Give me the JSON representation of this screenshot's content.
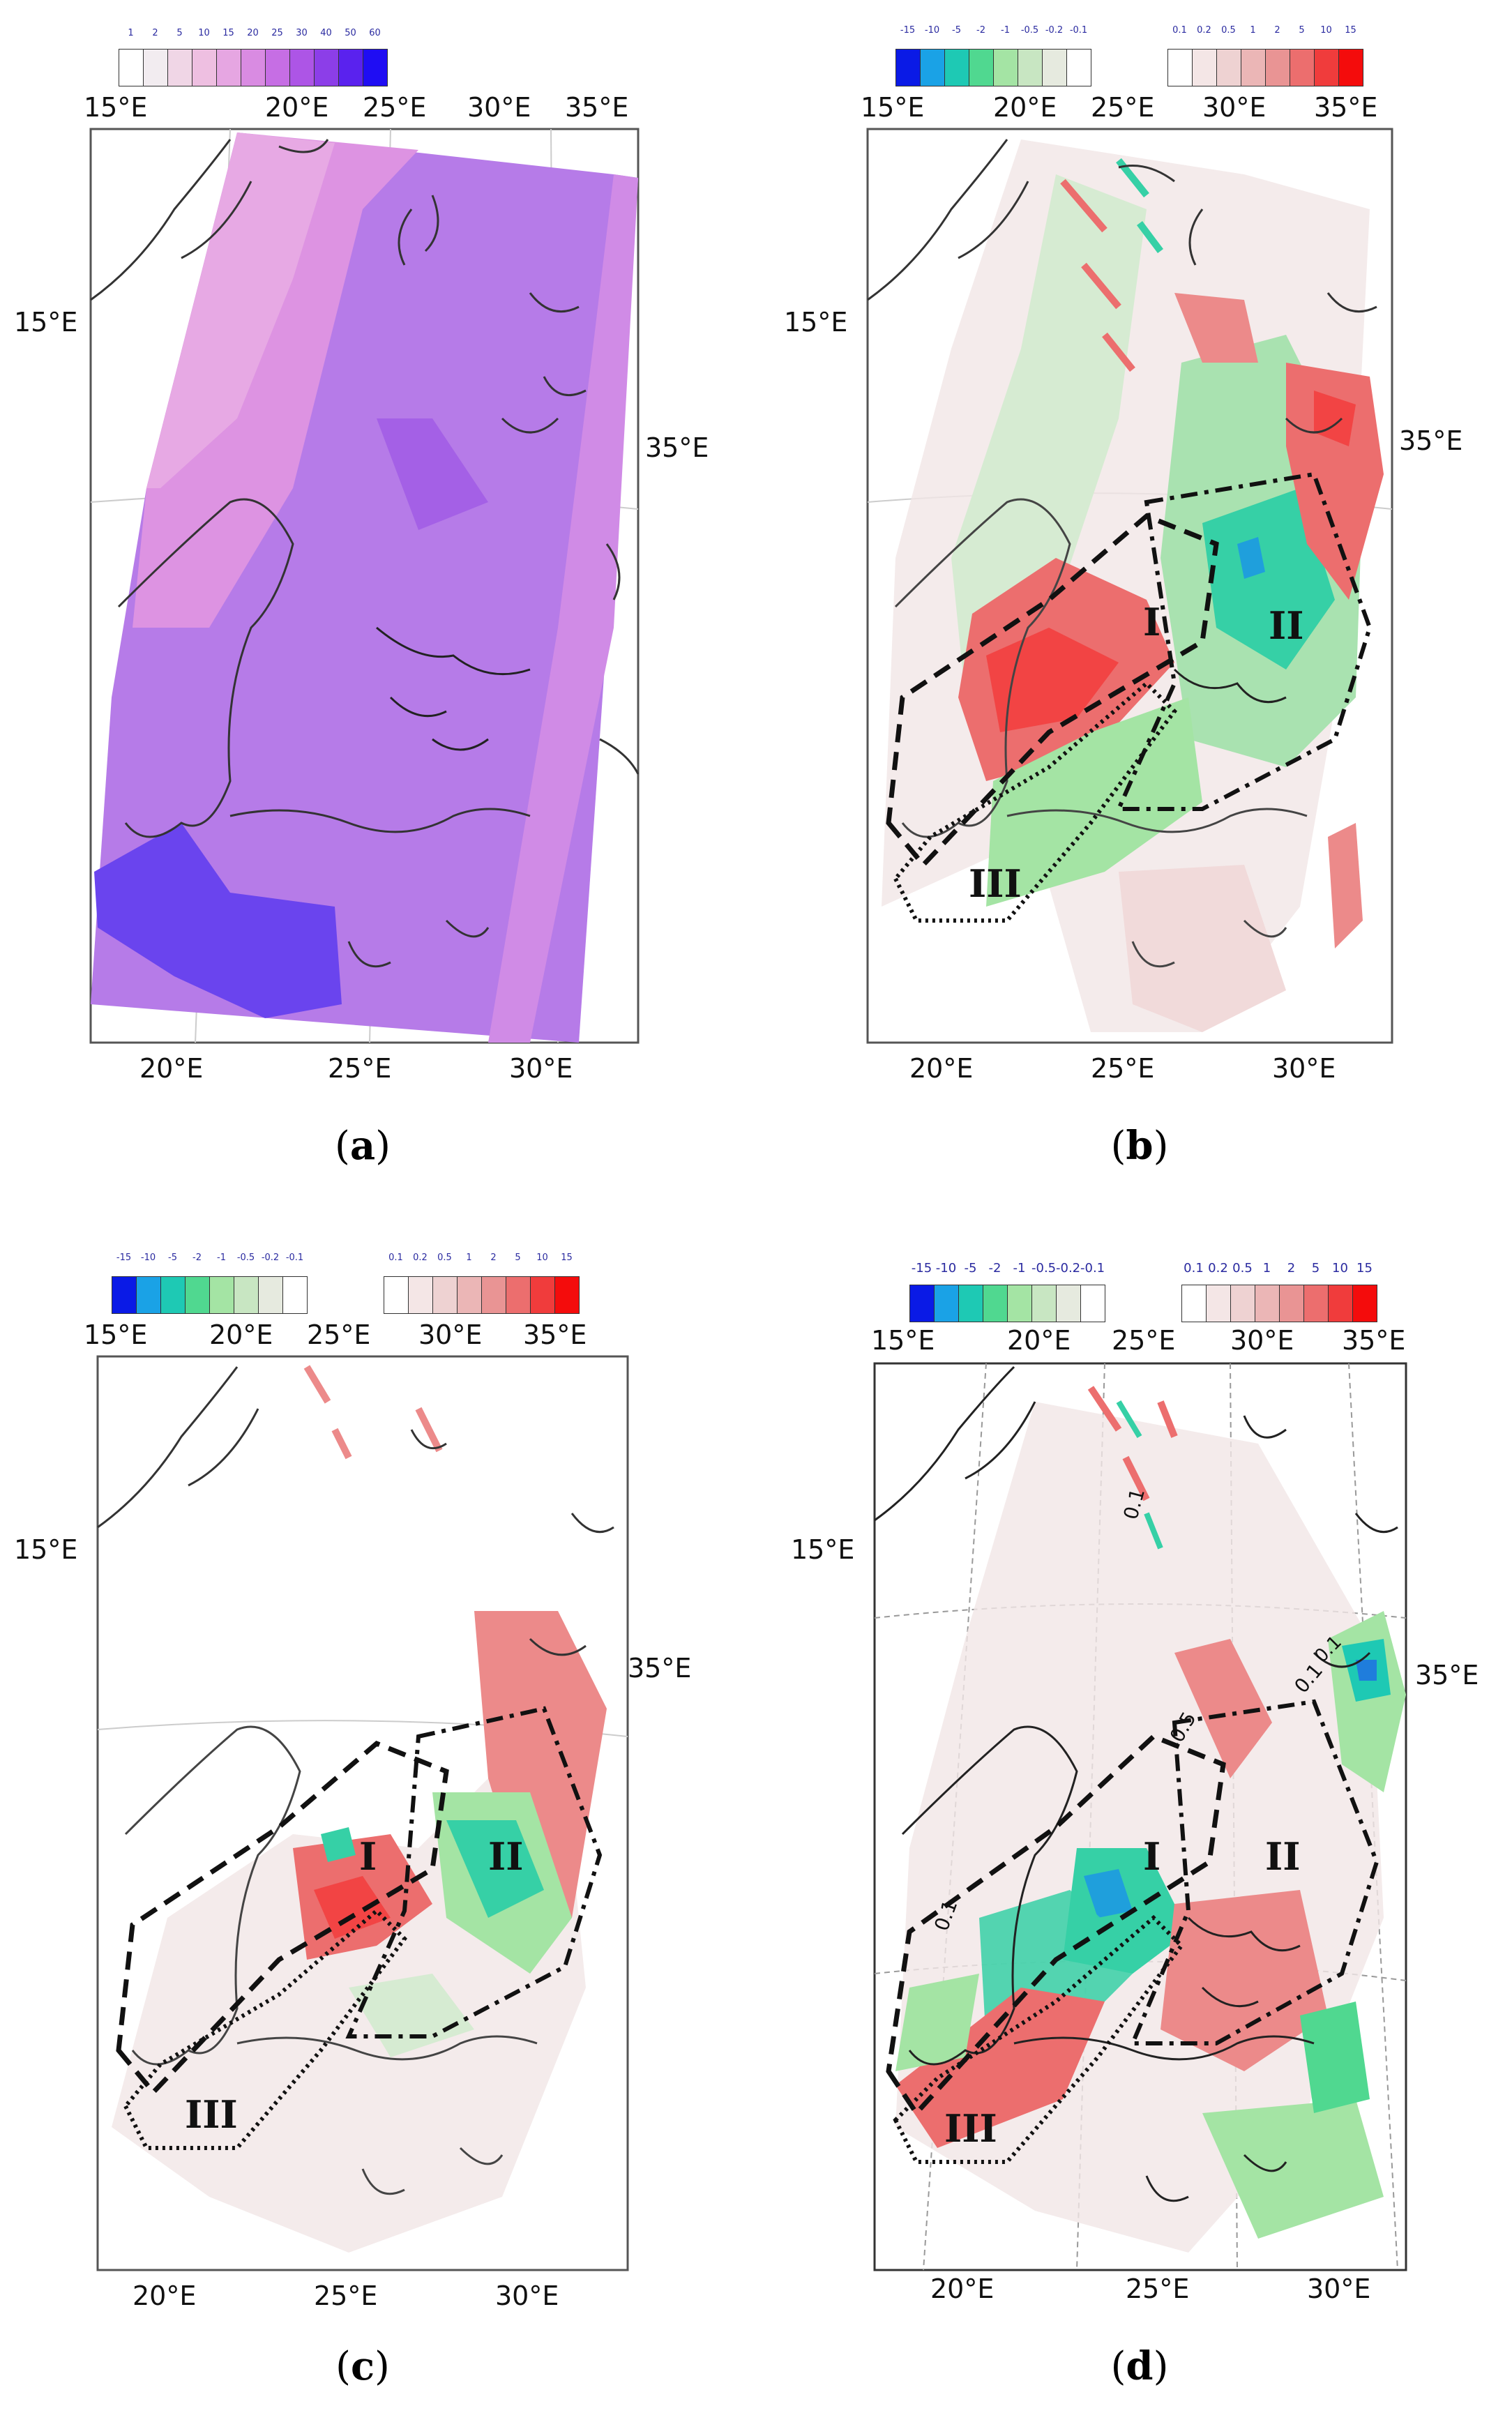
{
  "panels": [
    {
      "id": "a",
      "caption": "a",
      "colorbar_left": {
        "ticks": [
          "1",
          "2",
          "5",
          "10",
          "15",
          "20",
          "25",
          "30",
          "40",
          "50",
          "60"
        ],
        "colors": [
          "#ffffff",
          "#f2ecf0",
          "#f0d6e6",
          "#eebfe1",
          "#e6a6e2",
          "#d98be2",
          "#c66ee4",
          "#ad55e6",
          "#8c3ee8",
          "#5a22ee",
          "#1f0df3"
        ]
      },
      "lon_top": [
        "15°E",
        "20°E",
        "25°E",
        "30°E",
        "35°E"
      ],
      "lon_bottom": [
        "20°E",
        "25°E",
        "30°E"
      ],
      "lon_side_left": "15°E",
      "lon_side_right": "35°E",
      "regions": []
    },
    {
      "id": "b",
      "caption": "b",
      "colorbar_left": {
        "ticks": [
          "-15",
          "-10",
          "-5",
          "-2",
          "-1",
          "-0.5",
          "-0.2",
          "-0.1"
        ],
        "colors": [
          "#0a1ae6",
          "#1aa2e6",
          "#1ec9b4",
          "#50d890",
          "#a4e4a4",
          "#c8e6c2",
          "#e6eadf",
          "#ffffff"
        ]
      },
      "colorbar_right": {
        "ticks": [
          "0.1",
          "0.2",
          "0.5",
          "1",
          "2",
          "5",
          "10",
          "15"
        ],
        "colors": [
          "#ffffff",
          "#f4e6e6",
          "#eed2d2",
          "#ebb6b6",
          "#e99494",
          "#ec6e6e",
          "#f03c3c",
          "#f40c0c"
        ]
      },
      "lon_top": [
        "15°E",
        "20°E",
        "25°E",
        "30°E",
        "35°E"
      ],
      "lon_bottom": [
        "20°E",
        "25°E",
        "30°E"
      ],
      "lon_side_left": "15°E",
      "lon_side_right": "35°E",
      "regions": [
        "I",
        "II",
        "III"
      ]
    },
    {
      "id": "c",
      "caption": "c",
      "colorbar_left": {
        "ticks": [
          "-15",
          "-10",
          "-5",
          "-2",
          "-1",
          "-0.5",
          "-0.2",
          "-0.1"
        ],
        "colors": [
          "#0a1ae6",
          "#1aa2e6",
          "#1ec9b4",
          "#50d890",
          "#a4e4a4",
          "#c8e6c2",
          "#e6eadf",
          "#ffffff"
        ]
      },
      "colorbar_right": {
        "ticks": [
          "0.1",
          "0.2",
          "0.5",
          "1",
          "2",
          "5",
          "10",
          "15"
        ],
        "colors": [
          "#ffffff",
          "#f4e6e6",
          "#eed2d2",
          "#ebb6b6",
          "#e99494",
          "#ec6e6e",
          "#f03c3c",
          "#f40c0c"
        ]
      },
      "lon_top": [
        "15°E",
        "20°E",
        "25°E",
        "30°E",
        "35°E"
      ],
      "lon_bottom": [
        "20°E",
        "25°E",
        "30°E"
      ],
      "lon_side_left": "15°E",
      "lon_side_right": "35°E",
      "regions": [
        "I",
        "II",
        "III"
      ]
    },
    {
      "id": "d",
      "caption": "d",
      "colorbar_left": {
        "ticks": [
          "-15",
          "-10",
          "-5",
          "-2",
          "-1",
          "-0.5",
          "-0.2",
          "-0.1"
        ],
        "colors": [
          "#0a1ae6",
          "#1aa2e6",
          "#1ec9b4",
          "#50d890",
          "#a4e4a4",
          "#c8e6c2",
          "#e6eadf",
          "#ffffff"
        ]
      },
      "colorbar_right": {
        "ticks": [
          "0.1",
          "0.2",
          "0.5",
          "1",
          "2",
          "5",
          "10",
          "15"
        ],
        "colors": [
          "#ffffff",
          "#f4e6e6",
          "#eed2d2",
          "#ebb6b6",
          "#e99494",
          "#ec6e6e",
          "#f03c3c",
          "#f40c0c"
        ]
      },
      "lon_top": [
        "15°E",
        "20°E",
        "25°E",
        "30°E",
        "35°E"
      ],
      "lon_bottom": [
        "20°E",
        "25°E",
        "30°E"
      ],
      "lon_side_left": "15°E",
      "lon_side_right": "35°E",
      "regions": [
        "I",
        "II",
        "III"
      ],
      "contour_labels": [
        "0.1",
        "0.1",
        "0.5",
        "0.1",
        "0.1"
      ]
    }
  ]
}
